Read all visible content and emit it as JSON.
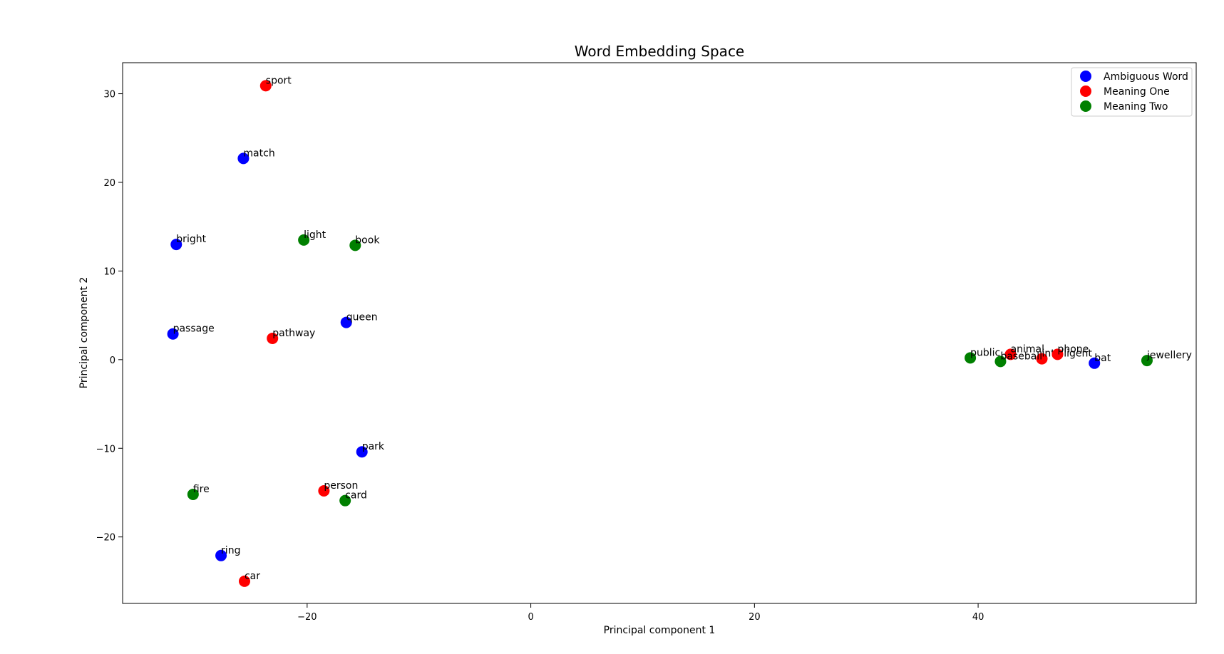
{
  "chart_data": {
    "type": "scatter",
    "title": "Word Embedding Space",
    "xlabel": "Principal component 1",
    "ylabel": "Principal component 2",
    "xlim": [
      -36.5,
      59.5
    ],
    "ylim": [
      -27.5,
      33.5
    ],
    "xticks": [
      -20,
      0,
      20,
      40
    ],
    "yticks": [
      -20,
      -10,
      0,
      10,
      20,
      30
    ],
    "grid": false,
    "legend_position": "top-right",
    "series": [
      {
        "name": "Ambiguous Word",
        "color": "#0000ff",
        "points": [
          {
            "label": "match",
            "x": -25.7,
            "y": 22.7
          },
          {
            "label": "bright",
            "x": -31.7,
            "y": 13.0
          },
          {
            "label": "passage",
            "x": -32.0,
            "y": 2.9
          },
          {
            "label": "queen",
            "x": -16.5,
            "y": 4.2
          },
          {
            "label": "park",
            "x": -15.1,
            "y": -10.4
          },
          {
            "label": "ring",
            "x": -27.7,
            "y": -22.1
          },
          {
            "label": "bat",
            "x": 50.4,
            "y": -0.4
          }
        ]
      },
      {
        "name": "Meaning One",
        "color": "#ff0000",
        "points": [
          {
            "label": "sport",
            "x": -23.7,
            "y": 30.9
          },
          {
            "label": "pathway",
            "x": -23.1,
            "y": 2.4
          },
          {
            "label": "person",
            "x": -18.5,
            "y": -14.8
          },
          {
            "label": "car",
            "x": -25.6,
            "y": -25.0
          },
          {
            "label": "animal",
            "x": 42.9,
            "y": 0.6
          },
          {
            "label": "intelligent",
            "x": 45.7,
            "y": 0.1
          },
          {
            "label": "phone",
            "x": 47.1,
            "y": 0.6
          }
        ]
      },
      {
        "name": "Meaning Two",
        "color": "#008000",
        "points": [
          {
            "label": "light",
            "x": -20.3,
            "y": 13.5
          },
          {
            "label": "book",
            "x": -15.7,
            "y": 12.9
          },
          {
            "label": "fire",
            "x": -30.2,
            "y": -15.2
          },
          {
            "label": "card",
            "x": -16.6,
            "y": -15.9
          },
          {
            "label": "public",
            "x": 39.3,
            "y": 0.2
          },
          {
            "label": "baseball",
            "x": 42.0,
            "y": -0.2
          },
          {
            "label": "jewellery",
            "x": 55.1,
            "y": -0.1
          }
        ]
      }
    ]
  }
}
